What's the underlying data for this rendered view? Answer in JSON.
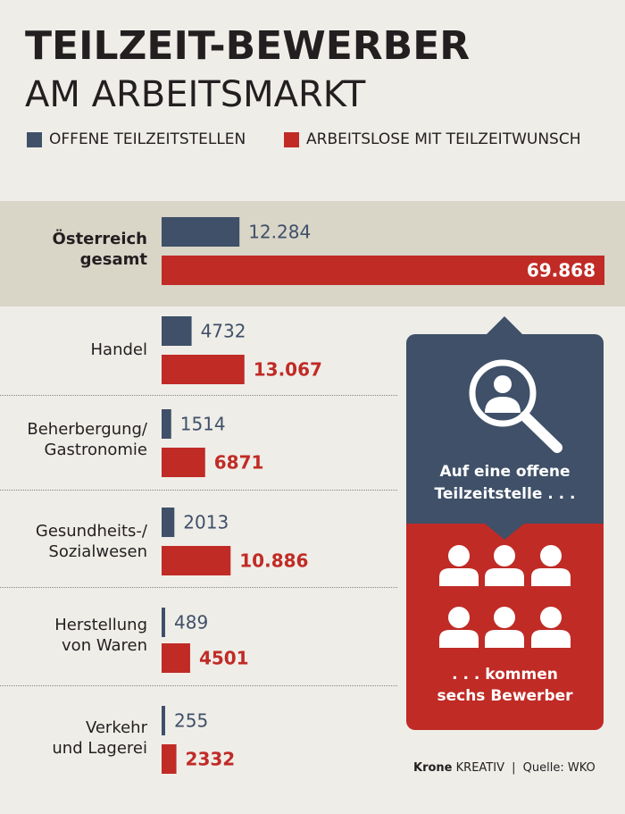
{
  "title_line1": "TEILZEIT-BEWERBER",
  "title_line2": "AM ARBEITSMARKT",
  "legend": {
    "blue_label": "OFFENE TEILZEITSTELLEN",
    "red_label": "ARBEITSLOSE MIT TEILZEITWUNSCH"
  },
  "colors": {
    "blue": "#3f5068",
    "red": "#c02b26",
    "highlight_band": "#d9d5c7"
  },
  "callout": {
    "top_text_line1": "Auf eine offene",
    "top_text_line2": "Teilzeitstelle . . .",
    "bottom_text_line1": ". . . kommen",
    "bottom_text_line2": "sechs Bewerber",
    "top_icon": "magnifier-person-icon",
    "bottom_icon": "person-icon"
  },
  "footer": {
    "brand": "Krone",
    "brand_suffix": "KREATIV",
    "divider": "|",
    "source": "Quelle: WKO"
  },
  "chart_data": {
    "type": "bar",
    "orientation": "horizontal",
    "categories": [
      "Österreich gesamt",
      "Handel",
      "Beherbergung/ Gastronomie",
      "Gesundheits-/ Sozialwesen",
      "Herstellung von Waren",
      "Verkehr und Lagerei"
    ],
    "category_lines": [
      [
        "Österreich",
        "gesamt"
      ],
      [
        "Handel"
      ],
      [
        "Beherbergung/",
        "Gastronomie"
      ],
      [
        "Gesundheits-/",
        "Sozialwesen"
      ],
      [
        "Herstellung",
        "von Waren"
      ],
      [
        "Verkehr",
        "und Lagerei"
      ]
    ],
    "series": [
      {
        "name": "OFFENE TEILZEITSTELLEN",
        "color": "#3f5068",
        "values": [
          12284,
          4732,
          1514,
          2013,
          489,
          255
        ],
        "labels": [
          "12.284",
          "4732",
          "1514",
          "2013",
          "489",
          "255"
        ]
      },
      {
        "name": "ARBEITSLOSE MIT TEILZEITWUNSCH",
        "color": "#c02b26",
        "values": [
          69868,
          13067,
          6871,
          10886,
          4501,
          2332
        ],
        "labels": [
          "69.868",
          "13.067",
          "6871",
          "10.886",
          "4501",
          "2332"
        ]
      }
    ],
    "title": "TEILZEIT-BEWERBER AM ARBEITSMARKT",
    "highlight_category": "Österreich gesamt"
  }
}
